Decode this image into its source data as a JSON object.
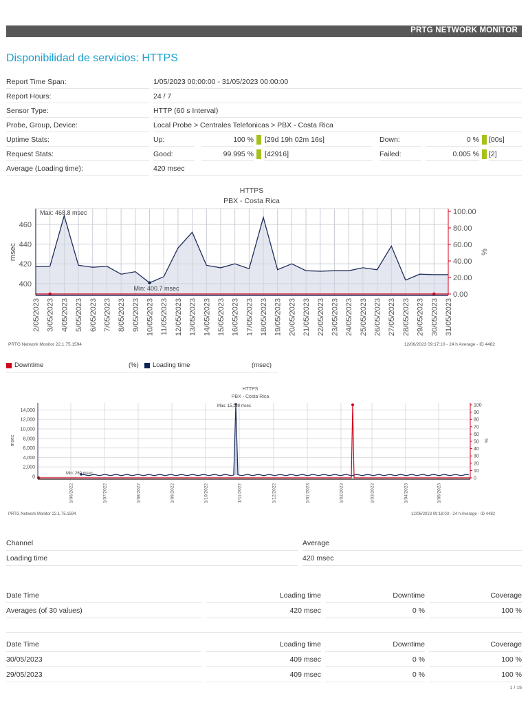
{
  "header": {
    "brand": "PRTG NETWORK MONITOR"
  },
  "page_title": "Disponibilidad de servicios: HTTPS",
  "info": {
    "report_time_span": {
      "label": "Report Time Span:",
      "value": "1/05/2023 00:00:00 - 31/05/2023 00:00:00"
    },
    "report_hours": {
      "label": "Report Hours:",
      "value": "24 / 7"
    },
    "sensor_type": {
      "label": "Sensor Type:",
      "value": "HTTP (60 s Interval)"
    },
    "probe_group_device": {
      "label": "Probe, Group, Device:",
      "value": "Local Probe > Centrales Telefonicas > PBX - Costa Rica"
    },
    "uptime": {
      "label": "Uptime Stats:",
      "up_label": "Up:",
      "up_pct": "100 %",
      "up_dur": "[29d 19h 02m 16s]",
      "down_label": "Down:",
      "down_pct": "0 %",
      "down_dur": "[00s]"
    },
    "requests": {
      "label": "Request Stats:",
      "good_label": "Good:",
      "good_pct": "99.995 %",
      "good_count": "[42916]",
      "failed_label": "Failed:",
      "failed_pct": "0.005 %",
      "failed_count": "[2]"
    },
    "average": {
      "label": "Average (Loading time):",
      "value": "420 msec"
    },
    "indicator_color": "#a7c11c"
  },
  "chart_data": [
    {
      "type": "line",
      "title": "HTTPS",
      "subtitle": "PBX - Costa Rica",
      "xlabel": "",
      "ylabel": "msec",
      "y2label": "%",
      "ylim": [
        388,
        476
      ],
      "y_ticks": [
        400,
        420,
        440,
        460
      ],
      "y2_ticks": [
        "0.00",
        "20.00",
        "40.00",
        "60.00",
        "80.00",
        "100.00"
      ],
      "grid": true,
      "categories": [
        "2/05/2023",
        "3/05/2023",
        "4/05/2023",
        "5/05/2023",
        "6/05/2023",
        "7/05/2023",
        "8/05/2023",
        "9/05/2023",
        "10/05/2023",
        "11/05/2023",
        "12/05/2023",
        "13/05/2023",
        "14/05/2023",
        "15/05/2023",
        "16/05/2023",
        "17/05/2023",
        "18/05/2023",
        "19/05/2023",
        "20/05/2023",
        "21/05/2023",
        "22/05/2023",
        "23/05/2023",
        "24/05/2023",
        "25/05/2023",
        "26/05/2023",
        "27/05/2023",
        "28/05/2023",
        "29/05/2023",
        "30/05/2023",
        "31/05/2023"
      ],
      "series": [
        {
          "name": "Loading time",
          "unit": "msec",
          "color": "#1f2d5c",
          "values": [
            417,
            417.5,
            468.8,
            418.5,
            416.5,
            417.5,
            409.5,
            412,
            400.7,
            407,
            436,
            452,
            418.5,
            416,
            420,
            415,
            467,
            414,
            420,
            413,
            412.5,
            413,
            413,
            416,
            414,
            438,
            403.5,
            409.5,
            409,
            409
          ]
        },
        {
          "name": "Downtime",
          "unit": "%",
          "color": "#d0021b",
          "values": [
            0,
            0,
            0,
            0,
            0,
            0,
            0,
            0,
            0,
            0,
            0,
            0,
            0,
            0,
            0,
            0,
            0,
            0,
            0,
            0,
            0,
            0,
            0,
            0,
            0,
            0,
            0,
            0,
            0,
            0
          ]
        }
      ],
      "annotations": [
        "Max: 468.8 msec",
        "Min: 400.7 msec"
      ],
      "footer_left": "PRTG Network Monitor 22.1.75.1594",
      "footer_right": "12/06/2023 09:17:10 - 24 h Average - ID 4482"
    },
    {
      "type": "line",
      "title": "HTTPS",
      "subtitle": "PBX - Costa Rica",
      "xlabel": "",
      "ylabel": "msec",
      "y2label": "%",
      "ylim": [
        -500,
        16000
      ],
      "y_ticks": [
        "0",
        "2,000",
        "4,000",
        "6,000",
        "8,000",
        "10,000",
        "12,000",
        "14,000"
      ],
      "y2_ticks": [
        "0",
        "10",
        "20",
        "30",
        "40",
        "50",
        "60",
        "70",
        "80",
        "90",
        "100"
      ],
      "grid": true,
      "categories": [
        "1/06/2022",
        "1/07/2022",
        "1/08/2022",
        "1/09/2022",
        "1/10/2022",
        "1/11/2022",
        "1/12/2022",
        "1/01/2023",
        "1/02/2023",
        "1/03/2023",
        "1/04/2023",
        "1/05/2023"
      ],
      "series": [
        {
          "name": "Loading time",
          "unit": "msec",
          "color": "#1f2d5c",
          "typical": 300,
          "peak": {
            "at": "31/10/2022",
            "value": 15188
          }
        },
        {
          "name": "Downtime",
          "unit": "%",
          "color": "#d0021b",
          "typical": 0,
          "peak": {
            "at": "14/02/2023",
            "value": 100
          }
        }
      ],
      "annotations": [
        "Max: 15,188 msec",
        "Min: 260 msec"
      ],
      "footer_left": "PRTG Network Monitor 22.1.75.1594",
      "footer_right": "12/06/2023 09:18:03 - 24 h Average - ID 4482"
    }
  ],
  "legend": [
    {
      "label": "Downtime",
      "unit": "(%)",
      "color": "#d0021b"
    },
    {
      "label": "Loading time",
      "unit": "(msec)",
      "color": "#0f2456"
    }
  ],
  "channel_table": {
    "headers": [
      "Channel",
      "Average"
    ],
    "rows": [
      [
        "Loading time",
        "420 msec"
      ]
    ]
  },
  "averages_table": {
    "headers": [
      "Date Time",
      "Loading time",
      "Downtime",
      "Coverage"
    ],
    "rows": [
      [
        "Averages (of 30 values)",
        "420 msec",
        "0 %",
        "100 %"
      ]
    ]
  },
  "daily_table": {
    "headers": [
      "Date Time",
      "Loading time",
      "Downtime",
      "Coverage"
    ],
    "rows": [
      [
        "30/05/2023",
        "409 msec",
        "0 %",
        "100 %"
      ],
      [
        "29/05/2023",
        "409 msec",
        "0 %",
        "100 %"
      ]
    ]
  },
  "page_number": "1 / 15"
}
